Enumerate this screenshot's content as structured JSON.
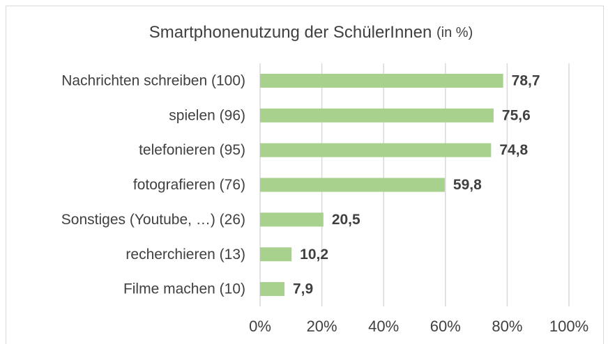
{
  "chart_data": {
    "type": "bar",
    "orientation": "horizontal",
    "title": "Smartphonenutzung der SchülerInnen",
    "subtitle": "(in %)",
    "categories": [
      "Nachrichten schreiben (100)",
      "spielen (96)",
      "telefonieren (95)",
      "fotografieren (76)",
      "Sonstiges (Youtube, …) (26)",
      "recherchieren (13)",
      "Filme machen (10)"
    ],
    "values": [
      78.7,
      75.6,
      74.8,
      59.8,
      20.5,
      10.2,
      7.9
    ],
    "value_labels": [
      "78,7",
      "75,6",
      "74,8",
      "59,8",
      "20,5",
      "10,2",
      "7,9"
    ],
    "color": "#a9d18e",
    "xlim": [
      0,
      100
    ],
    "xticks": [
      {
        "value": 0,
        "label": "0%"
      },
      {
        "value": 20,
        "label": "20%"
      },
      {
        "value": 40,
        "label": "40%"
      },
      {
        "value": 60,
        "label": "60%"
      },
      {
        "value": 80,
        "label": "80%"
      },
      {
        "value": 100,
        "label": "100%"
      }
    ],
    "grid": true
  }
}
